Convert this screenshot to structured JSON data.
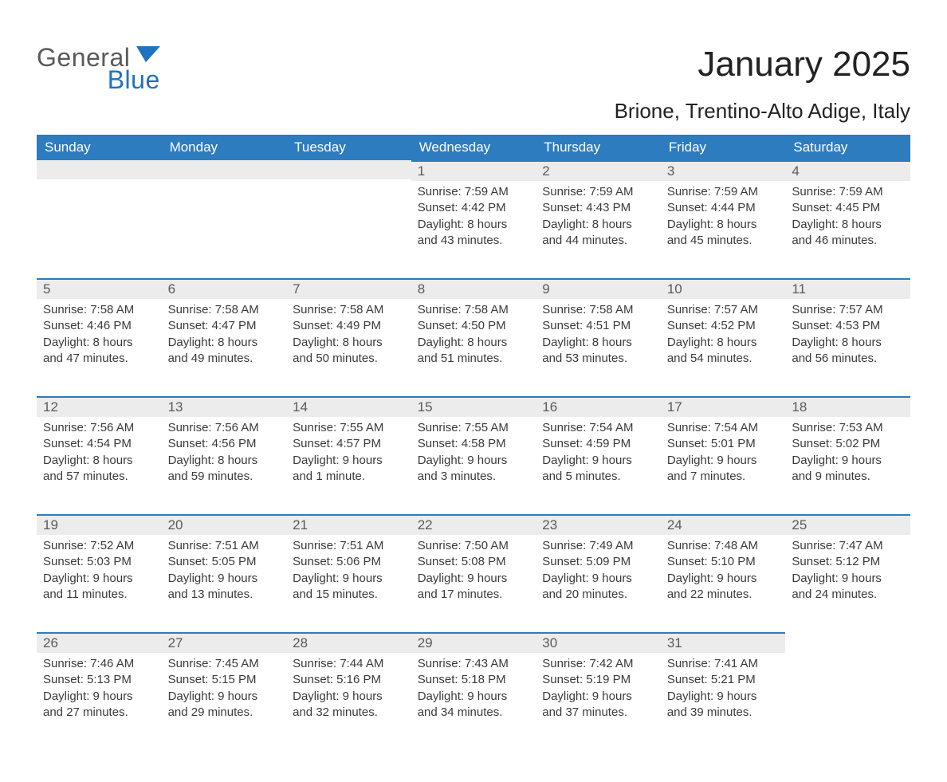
{
  "logo": {
    "text1": "General",
    "text2": "Blue"
  },
  "title": "January 2025",
  "location": "Brione, Trentino-Alto Adige, Italy",
  "weekdays": [
    "Sunday",
    "Monday",
    "Tuesday",
    "Wednesday",
    "Thursday",
    "Friday",
    "Saturday"
  ],
  "colors": {
    "header_bg": "#2e7cc0",
    "header_text": "#ffffff",
    "dayhead_bg": "#ececec",
    "accent": "#2e7cc0",
    "text": "#333333"
  },
  "weeks": [
    [
      null,
      null,
      null,
      {
        "n": "1",
        "sunrise": "Sunrise: 7:59 AM",
        "sunset": "Sunset: 4:42 PM",
        "d1": "Daylight: 8 hours",
        "d2": "and 43 minutes."
      },
      {
        "n": "2",
        "sunrise": "Sunrise: 7:59 AM",
        "sunset": "Sunset: 4:43 PM",
        "d1": "Daylight: 8 hours",
        "d2": "and 44 minutes."
      },
      {
        "n": "3",
        "sunrise": "Sunrise: 7:59 AM",
        "sunset": "Sunset: 4:44 PM",
        "d1": "Daylight: 8 hours",
        "d2": "and 45 minutes."
      },
      {
        "n": "4",
        "sunrise": "Sunrise: 7:59 AM",
        "sunset": "Sunset: 4:45 PM",
        "d1": "Daylight: 8 hours",
        "d2": "and 46 minutes."
      }
    ],
    [
      {
        "n": "5",
        "sunrise": "Sunrise: 7:58 AM",
        "sunset": "Sunset: 4:46 PM",
        "d1": "Daylight: 8 hours",
        "d2": "and 47 minutes."
      },
      {
        "n": "6",
        "sunrise": "Sunrise: 7:58 AM",
        "sunset": "Sunset: 4:47 PM",
        "d1": "Daylight: 8 hours",
        "d2": "and 49 minutes."
      },
      {
        "n": "7",
        "sunrise": "Sunrise: 7:58 AM",
        "sunset": "Sunset: 4:49 PM",
        "d1": "Daylight: 8 hours",
        "d2": "and 50 minutes."
      },
      {
        "n": "8",
        "sunrise": "Sunrise: 7:58 AM",
        "sunset": "Sunset: 4:50 PM",
        "d1": "Daylight: 8 hours",
        "d2": "and 51 minutes."
      },
      {
        "n": "9",
        "sunrise": "Sunrise: 7:58 AM",
        "sunset": "Sunset: 4:51 PM",
        "d1": "Daylight: 8 hours",
        "d2": "and 53 minutes."
      },
      {
        "n": "10",
        "sunrise": "Sunrise: 7:57 AM",
        "sunset": "Sunset: 4:52 PM",
        "d1": "Daylight: 8 hours",
        "d2": "and 54 minutes."
      },
      {
        "n": "11",
        "sunrise": "Sunrise: 7:57 AM",
        "sunset": "Sunset: 4:53 PM",
        "d1": "Daylight: 8 hours",
        "d2": "and 56 minutes."
      }
    ],
    [
      {
        "n": "12",
        "sunrise": "Sunrise: 7:56 AM",
        "sunset": "Sunset: 4:54 PM",
        "d1": "Daylight: 8 hours",
        "d2": "and 57 minutes."
      },
      {
        "n": "13",
        "sunrise": "Sunrise: 7:56 AM",
        "sunset": "Sunset: 4:56 PM",
        "d1": "Daylight: 8 hours",
        "d2": "and 59 minutes."
      },
      {
        "n": "14",
        "sunrise": "Sunrise: 7:55 AM",
        "sunset": "Sunset: 4:57 PM",
        "d1": "Daylight: 9 hours",
        "d2": "and 1 minute."
      },
      {
        "n": "15",
        "sunrise": "Sunrise: 7:55 AM",
        "sunset": "Sunset: 4:58 PM",
        "d1": "Daylight: 9 hours",
        "d2": "and 3 minutes."
      },
      {
        "n": "16",
        "sunrise": "Sunrise: 7:54 AM",
        "sunset": "Sunset: 4:59 PM",
        "d1": "Daylight: 9 hours",
        "d2": "and 5 minutes."
      },
      {
        "n": "17",
        "sunrise": "Sunrise: 7:54 AM",
        "sunset": "Sunset: 5:01 PM",
        "d1": "Daylight: 9 hours",
        "d2": "and 7 minutes."
      },
      {
        "n": "18",
        "sunrise": "Sunrise: 7:53 AM",
        "sunset": "Sunset: 5:02 PM",
        "d1": "Daylight: 9 hours",
        "d2": "and 9 minutes."
      }
    ],
    [
      {
        "n": "19",
        "sunrise": "Sunrise: 7:52 AM",
        "sunset": "Sunset: 5:03 PM",
        "d1": "Daylight: 9 hours",
        "d2": "and 11 minutes."
      },
      {
        "n": "20",
        "sunrise": "Sunrise: 7:51 AM",
        "sunset": "Sunset: 5:05 PM",
        "d1": "Daylight: 9 hours",
        "d2": "and 13 minutes."
      },
      {
        "n": "21",
        "sunrise": "Sunrise: 7:51 AM",
        "sunset": "Sunset: 5:06 PM",
        "d1": "Daylight: 9 hours",
        "d2": "and 15 minutes."
      },
      {
        "n": "22",
        "sunrise": "Sunrise: 7:50 AM",
        "sunset": "Sunset: 5:08 PM",
        "d1": "Daylight: 9 hours",
        "d2": "and 17 minutes."
      },
      {
        "n": "23",
        "sunrise": "Sunrise: 7:49 AM",
        "sunset": "Sunset: 5:09 PM",
        "d1": "Daylight: 9 hours",
        "d2": "and 20 minutes."
      },
      {
        "n": "24",
        "sunrise": "Sunrise: 7:48 AM",
        "sunset": "Sunset: 5:10 PM",
        "d1": "Daylight: 9 hours",
        "d2": "and 22 minutes."
      },
      {
        "n": "25",
        "sunrise": "Sunrise: 7:47 AM",
        "sunset": "Sunset: 5:12 PM",
        "d1": "Daylight: 9 hours",
        "d2": "and 24 minutes."
      }
    ],
    [
      {
        "n": "26",
        "sunrise": "Sunrise: 7:46 AM",
        "sunset": "Sunset: 5:13 PM",
        "d1": "Daylight: 9 hours",
        "d2": "and 27 minutes."
      },
      {
        "n": "27",
        "sunrise": "Sunrise: 7:45 AM",
        "sunset": "Sunset: 5:15 PM",
        "d1": "Daylight: 9 hours",
        "d2": "and 29 minutes."
      },
      {
        "n": "28",
        "sunrise": "Sunrise: 7:44 AM",
        "sunset": "Sunset: 5:16 PM",
        "d1": "Daylight: 9 hours",
        "d2": "and 32 minutes."
      },
      {
        "n": "29",
        "sunrise": "Sunrise: 7:43 AM",
        "sunset": "Sunset: 5:18 PM",
        "d1": "Daylight: 9 hours",
        "d2": "and 34 minutes."
      },
      {
        "n": "30",
        "sunrise": "Sunrise: 7:42 AM",
        "sunset": "Sunset: 5:19 PM",
        "d1": "Daylight: 9 hours",
        "d2": "and 37 minutes."
      },
      {
        "n": "31",
        "sunrise": "Sunrise: 7:41 AM",
        "sunset": "Sunset: 5:21 PM",
        "d1": "Daylight: 9 hours",
        "d2": "and 39 minutes."
      },
      null
    ]
  ]
}
